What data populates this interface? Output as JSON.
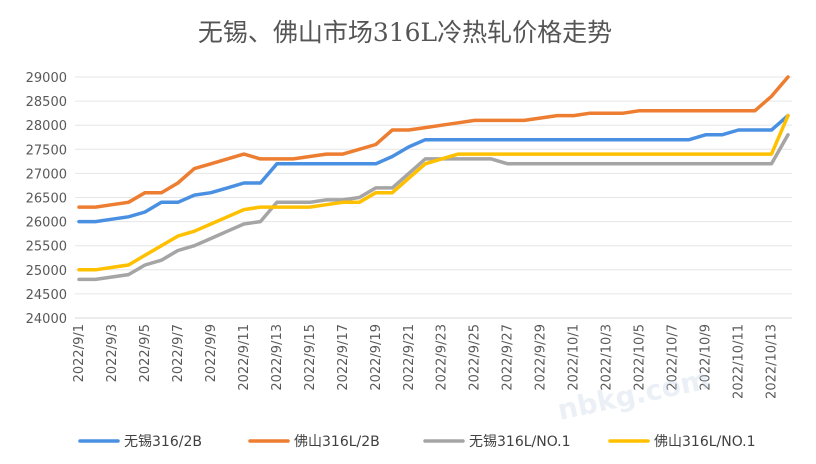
{
  "chart_data": {
    "type": "line",
    "title": "无锡、佛山市场316L冷热轧价格走势",
    "xlabel": "",
    "ylabel": "",
    "ylim": [
      24000,
      29000
    ],
    "yticks": [
      24000,
      24500,
      25000,
      25500,
      26000,
      26500,
      27000,
      27500,
      28000,
      28500,
      29000
    ],
    "x": [
      "2022/9/1",
      "2022/9/2",
      "2022/9/3",
      "2022/9/4",
      "2022/9/5",
      "2022/9/6",
      "2022/9/7",
      "2022/9/8",
      "2022/9/9",
      "2022/9/10",
      "2022/9/11",
      "2022/9/12",
      "2022/9/13",
      "2022/9/14",
      "2022/9/15",
      "2022/9/16",
      "2022/9/17",
      "2022/9/18",
      "2022/9/19",
      "2022/9/20",
      "2022/9/21",
      "2022/9/22",
      "2022/9/23",
      "2022/9/24",
      "2022/9/25",
      "2022/9/26",
      "2022/9/27",
      "2022/9/28",
      "2022/9/29",
      "2022/9/30",
      "2022/10/1",
      "2022/10/2",
      "2022/10/3",
      "2022/10/4",
      "2022/10/5",
      "2022/10/6",
      "2022/10/7",
      "2022/10/8",
      "2022/10/9",
      "2022/10/10",
      "2022/10/11",
      "2022/10/12",
      "2022/10/13",
      "2022/10/14"
    ],
    "tick_labels": [
      "2022/9/1",
      "2022/9/3",
      "2022/9/5",
      "2022/9/7",
      "2022/9/9",
      "2022/9/11",
      "2022/9/13",
      "2022/9/15",
      "2022/9/17",
      "2022/9/19",
      "2022/9/21",
      "2022/9/23",
      "2022/9/25",
      "2022/9/27",
      "2022/9/29",
      "2022/10/1",
      "2022/10/3",
      "2022/10/5",
      "2022/10/7",
      "2022/10/9",
      "2022/10/11",
      "2022/10/13"
    ],
    "tick_every": 2,
    "series": [
      {
        "name": "无锡316/2B",
        "color": "#4a90e2",
        "values": [
          26000,
          26000,
          26050,
          26100,
          26200,
          26400,
          26400,
          26550,
          26600,
          26700,
          26800,
          26800,
          27200,
          27200,
          27200,
          27200,
          27200,
          27200,
          27200,
          27350,
          27550,
          27700,
          27700,
          27700,
          27700,
          27700,
          27700,
          27700,
          27700,
          27700,
          27700,
          27700,
          27700,
          27700,
          27700,
          27700,
          27700,
          27700,
          27800,
          27800,
          27900,
          27900,
          27900,
          28200
        ]
      },
      {
        "name": "佛山316L/2B",
        "color": "#ed7d31",
        "values": [
          26300,
          26300,
          26350,
          26400,
          26600,
          26600,
          26800,
          27100,
          27200,
          27300,
          27400,
          27300,
          27300,
          27300,
          27350,
          27400,
          27400,
          27500,
          27600,
          27900,
          27900,
          27950,
          28000,
          28050,
          28100,
          28100,
          28100,
          28100,
          28150,
          28200,
          28200,
          28250,
          28250,
          28250,
          28300,
          28300,
          28300,
          28300,
          28300,
          28300,
          28300,
          28300,
          28600,
          29000
        ]
      },
      {
        "name": "无锡316L/NO.1",
        "color": "#a5a5a5",
        "values": [
          24800,
          24800,
          24850,
          24900,
          25100,
          25200,
          25400,
          25500,
          25650,
          25800,
          25950,
          26000,
          26400,
          26400,
          26400,
          26450,
          26450,
          26500,
          26700,
          26700,
          27000,
          27300,
          27300,
          27300,
          27300,
          27300,
          27200,
          27200,
          27200,
          27200,
          27200,
          27200,
          27200,
          27200,
          27200,
          27200,
          27200,
          27200,
          27200,
          27200,
          27200,
          27200,
          27200,
          27800
        ]
      },
      {
        "name": "佛山316L/NO.1",
        "color": "#ffc000",
        "values": [
          25000,
          25000,
          25050,
          25100,
          25300,
          25500,
          25700,
          25800,
          25950,
          26100,
          26250,
          26300,
          26300,
          26300,
          26300,
          26350,
          26400,
          26400,
          26600,
          26600,
          26900,
          27200,
          27300,
          27400,
          27400,
          27400,
          27400,
          27400,
          27400,
          27400,
          27400,
          27400,
          27400,
          27400,
          27400,
          27400,
          27400,
          27400,
          27400,
          27400,
          27400,
          27400,
          27400,
          28200
        ]
      }
    ],
    "legend_position": "bottom",
    "grid": true
  }
}
